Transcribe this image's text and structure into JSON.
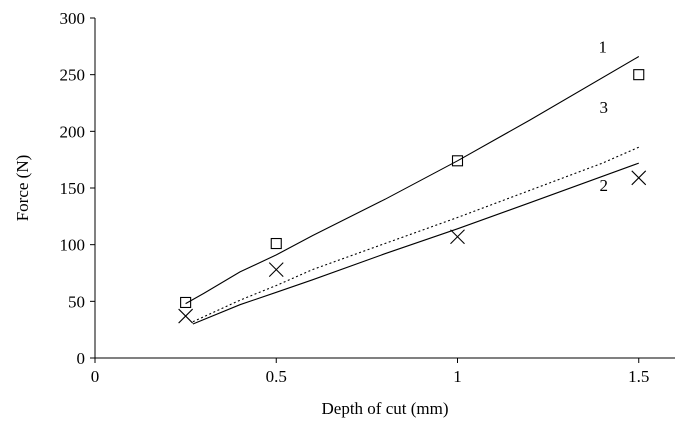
{
  "chart_data": {
    "type": "scatter",
    "title": "",
    "xlabel": "Depth of cut (mm)",
    "ylabel": "Force (N)",
    "xlim": [
      0,
      1.6
    ],
    "ylim": [
      0,
      300
    ],
    "x_ticks": [
      0,
      0.5,
      1,
      1.5
    ],
    "x_tick_labels": [
      "0",
      "0.5",
      "1",
      "1.5"
    ],
    "y_ticks": [
      0,
      50,
      100,
      150,
      200,
      250,
      300
    ],
    "y_tick_labels": [
      "0",
      "50",
      "100",
      "150",
      "200",
      "250",
      "300"
    ],
    "grid": false,
    "legend": "none",
    "points": [
      {
        "marker": "square",
        "x": [
          0.25,
          0.5,
          1.0,
          1.5
        ],
        "y": [
          49,
          101,
          174,
          250
        ]
      },
      {
        "marker": "cross",
        "x": [
          0.25,
          0.5,
          1.0,
          1.5
        ],
        "y": [
          37,
          78,
          107,
          159
        ]
      }
    ],
    "lines": [
      {
        "label": "1",
        "style": "solid",
        "x": [
          0.25,
          0.3,
          0.4,
          0.5,
          0.6,
          0.8,
          1.0,
          1.2,
          1.5
        ],
        "y": [
          48,
          57,
          76,
          91,
          108,
          140,
          174,
          210,
          266
        ]
      },
      {
        "label": "2",
        "style": "solid",
        "x": [
          0.27,
          0.4,
          0.5,
          0.6,
          0.8,
          1.0,
          1.2,
          1.5
        ],
        "y": [
          30,
          47,
          58,
          69,
          92,
          114,
          137,
          172
        ]
      },
      {
        "label": "3",
        "style": "dotted",
        "x": [
          0.27,
          0.4,
          0.5,
          0.6,
          0.8,
          1.0,
          1.2,
          1.4,
          1.5
        ],
        "y": [
          32,
          51,
          64,
          78,
          101,
          124,
          148,
          172,
          186
        ]
      }
    ]
  }
}
